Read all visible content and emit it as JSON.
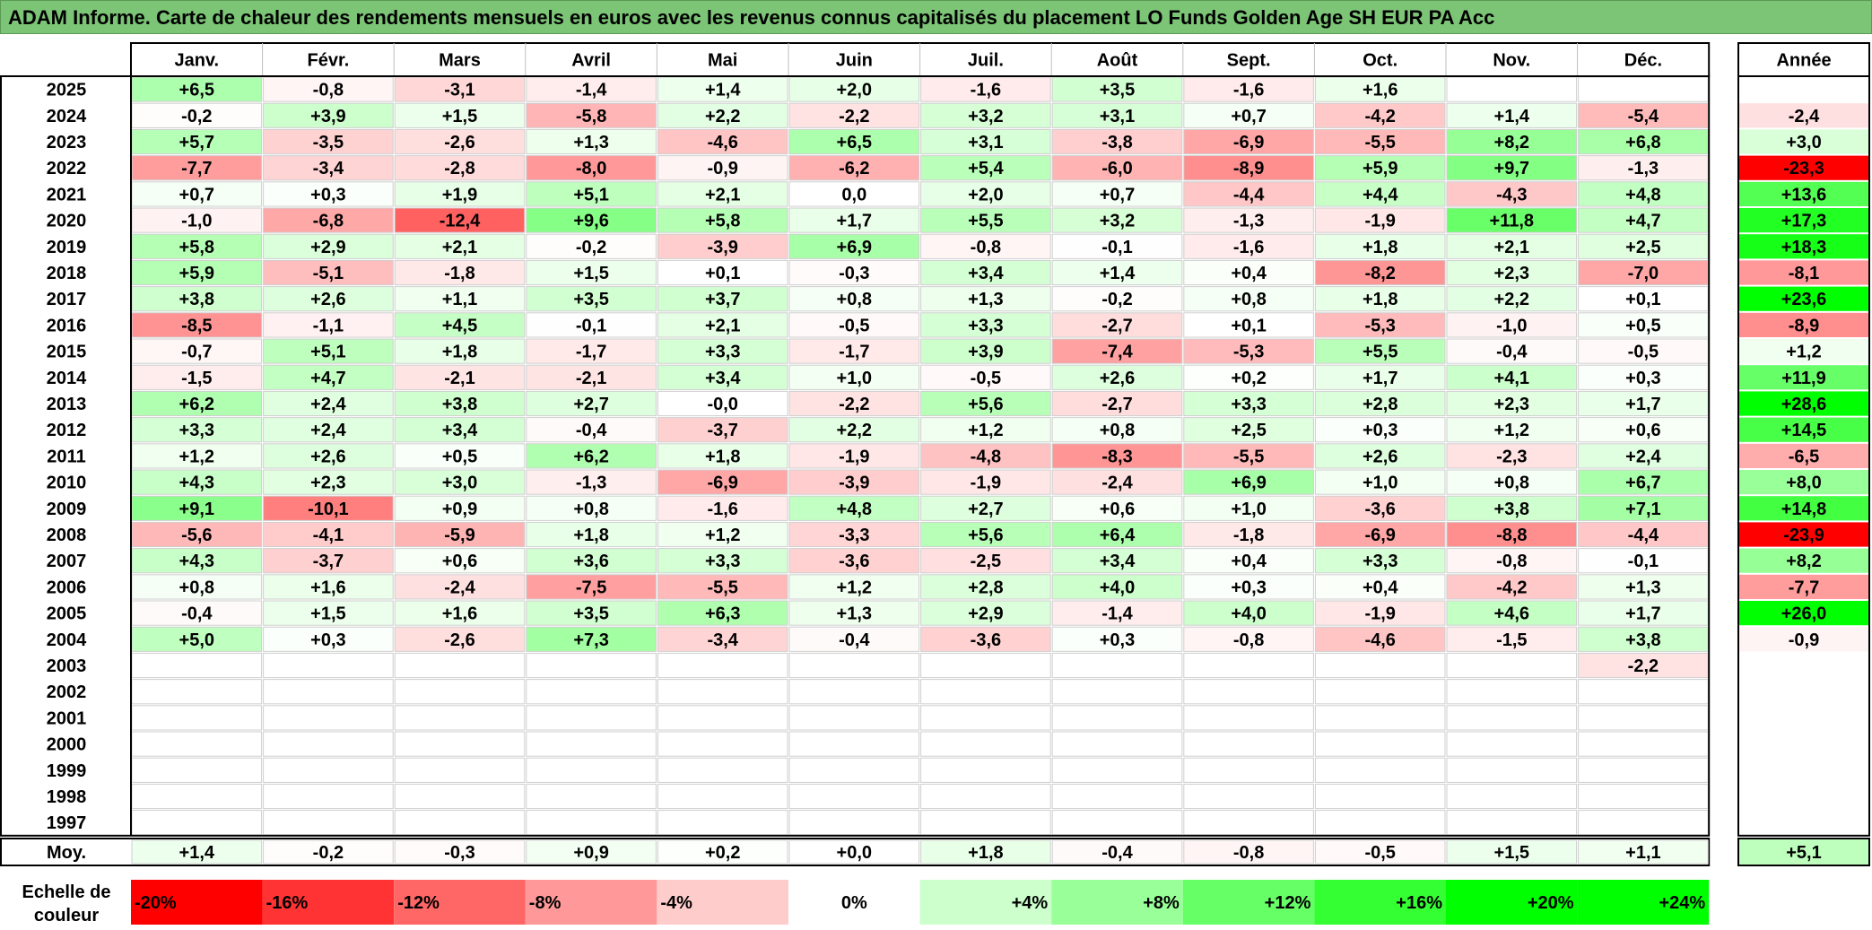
{
  "title": "ADAM Informe. Carte de chaleur des rendements mensuels en euros avec les revenus connus capitalisés du placement LO Funds Golden Age SH EUR PA Acc",
  "chart_data": {
    "type": "heatmap",
    "months": [
      "Janv.",
      "Févr.",
      "Mars",
      "Avril",
      "Mai",
      "Juin",
      "Juil.",
      "Août",
      "Sept.",
      "Oct.",
      "Nov.",
      "Déc."
    ],
    "year_header": "Année",
    "rows": [
      {
        "year": "2025",
        "m": [
          "+6,5",
          "-0,8",
          "-3,1",
          "-1,4",
          "+1,4",
          "+2,0",
          "-1,6",
          "+3,5",
          "-1,6",
          "+1,6",
          "",
          ""
        ],
        "y": ""
      },
      {
        "year": "2024",
        "m": [
          "-0,2",
          "+3,9",
          "+1,5",
          "-5,8",
          "+2,2",
          "-2,2",
          "+3,2",
          "+3,1",
          "+0,7",
          "-4,2",
          "+1,4",
          "-5,4"
        ],
        "y": "-2,4"
      },
      {
        "year": "2023",
        "m": [
          "+5,7",
          "-3,5",
          "-2,6",
          "+1,3",
          "-4,6",
          "+6,5",
          "+3,1",
          "-3,8",
          "-6,9",
          "-5,5",
          "+8,2",
          "+6,8"
        ],
        "y": "+3,0"
      },
      {
        "year": "2022",
        "m": [
          "-7,7",
          "-3,4",
          "-2,8",
          "-8,0",
          "-0,9",
          "-6,2",
          "+5,4",
          "-6,0",
          "-8,9",
          "+5,9",
          "+9,7",
          "-1,3"
        ],
        "y": "-23,3"
      },
      {
        "year": "2021",
        "m": [
          "+0,7",
          "+0,3",
          "+1,9",
          "+5,1",
          "+2,1",
          "0,0",
          "+2,0",
          "+0,7",
          "-4,4",
          "+4,4",
          "-4,3",
          "+4,8"
        ],
        "y": "+13,6"
      },
      {
        "year": "2020",
        "m": [
          "-1,0",
          "-6,8",
          "-12,4",
          "+9,6",
          "+5,8",
          "+1,7",
          "+5,5",
          "+3,2",
          "-1,3",
          "-1,9",
          "+11,8",
          "+4,7"
        ],
        "y": "+17,3"
      },
      {
        "year": "2019",
        "m": [
          "+5,8",
          "+2,9",
          "+2,1",
          "-0,2",
          "-3,9",
          "+6,9",
          "-0,8",
          "-0,1",
          "-1,6",
          "+1,8",
          "+2,1",
          "+2,5"
        ],
        "y": "+18,3"
      },
      {
        "year": "2018",
        "m": [
          "+5,9",
          "-5,1",
          "-1,8",
          "+1,5",
          "+0,1",
          "-0,3",
          "+3,4",
          "+1,4",
          "+0,4",
          "-8,2",
          "+2,3",
          "-7,0"
        ],
        "y": "-8,1"
      },
      {
        "year": "2017",
        "m": [
          "+3,8",
          "+2,6",
          "+1,1",
          "+3,5",
          "+3,7",
          "+0,8",
          "+1,3",
          "-0,2",
          "+0,8",
          "+1,8",
          "+2,2",
          "+0,1"
        ],
        "y": "+23,6"
      },
      {
        "year": "2016",
        "m": [
          "-8,5",
          "-1,1",
          "+4,5",
          "-0,1",
          "+2,1",
          "-0,5",
          "+3,3",
          "-2,7",
          "+0,1",
          "-5,3",
          "-1,0",
          "+0,5"
        ],
        "y": "-8,9"
      },
      {
        "year": "2015",
        "m": [
          "-0,7",
          "+5,1",
          "+1,8",
          "-1,7",
          "+3,3",
          "-1,7",
          "+3,9",
          "-7,4",
          "-5,3",
          "+5,5",
          "-0,4",
          "-0,5"
        ],
        "y": "+1,2"
      },
      {
        "year": "2014",
        "m": [
          "-1,5",
          "+4,7",
          "-2,1",
          "-2,1",
          "+3,4",
          "+1,0",
          "-0,5",
          "+2,6",
          "+0,2",
          "+1,7",
          "+4,1",
          "+0,3"
        ],
        "y": "+11,9"
      },
      {
        "year": "2013",
        "m": [
          "+6,2",
          "+2,4",
          "+3,8",
          "+2,7",
          "-0,0",
          "-2,2",
          "+5,6",
          "-2,7",
          "+3,3",
          "+2,8",
          "+2,3",
          "+1,7"
        ],
        "y": "+28,6"
      },
      {
        "year": "2012",
        "m": [
          "+3,3",
          "+2,4",
          "+3,4",
          "-0,4",
          "-3,7",
          "+2,2",
          "+1,2",
          "+0,8",
          "+2,5",
          "+0,3",
          "+1,2",
          "+0,6"
        ],
        "y": "+14,5"
      },
      {
        "year": "2011",
        "m": [
          "+1,2",
          "+2,6",
          "+0,5",
          "+6,2",
          "+1,8",
          "-1,9",
          "-4,8",
          "-8,3",
          "-5,5",
          "+2,6",
          "-2,3",
          "+2,4"
        ],
        "y": "-6,5"
      },
      {
        "year": "2010",
        "m": [
          "+4,3",
          "+2,3",
          "+3,0",
          "-1,3",
          "-6,9",
          "-3,9",
          "-1,9",
          "-2,4",
          "+6,9",
          "+1,0",
          "+0,8",
          "+6,7"
        ],
        "y": "+8,0"
      },
      {
        "year": "2009",
        "m": [
          "+9,1",
          "-10,1",
          "+0,9",
          "+0,8",
          "-1,6",
          "+4,8",
          "+2,7",
          "+0,6",
          "+1,0",
          "-3,6",
          "+3,8",
          "+7,1"
        ],
        "y": "+14,8"
      },
      {
        "year": "2008",
        "m": [
          "-5,6",
          "-4,1",
          "-5,9",
          "+1,8",
          "+1,2",
          "-3,3",
          "+5,6",
          "+6,4",
          "-1,8",
          "-6,9",
          "-8,8",
          "-4,4"
        ],
        "y": "-23,9"
      },
      {
        "year": "2007",
        "m": [
          "+4,3",
          "-3,7",
          "+0,6",
          "+3,6",
          "+3,3",
          "-3,6",
          "-2,5",
          "+3,4",
          "+0,4",
          "+3,3",
          "-0,8",
          "-0,1"
        ],
        "y": "+8,2"
      },
      {
        "year": "2006",
        "m": [
          "+0,8",
          "+1,6",
          "-2,4",
          "-7,5",
          "-5,5",
          "+1,2",
          "+2,8",
          "+4,0",
          "+0,3",
          "+0,4",
          "-4,2",
          "+1,3"
        ],
        "y": "-7,7"
      },
      {
        "year": "2005",
        "m": [
          "-0,4",
          "+1,5",
          "+1,6",
          "+3,5",
          "+6,3",
          "+1,3",
          "+2,9",
          "-1,4",
          "+4,0",
          "-1,9",
          "+4,6",
          "+1,7"
        ],
        "y": "+26,0"
      },
      {
        "year": "2004",
        "m": [
          "+5,0",
          "+0,3",
          "-2,6",
          "+7,3",
          "-3,4",
          "-0,4",
          "-3,6",
          "+0,3",
          "-0,8",
          "-4,6",
          "-1,5",
          "+3,8"
        ],
        "y": "-0,9"
      },
      {
        "year": "2003",
        "m": [
          "",
          "",
          "",
          "",
          "",
          "",
          "",
          "",
          "",
          "",
          "",
          "-2,2"
        ],
        "y": ""
      },
      {
        "year": "2002",
        "m": [
          "",
          "",
          "",
          "",
          "",
          "",
          "",
          "",
          "",
          "",
          "",
          ""
        ],
        "y": ""
      },
      {
        "year": "2001",
        "m": [
          "",
          "",
          "",
          "",
          "",
          "",
          "",
          "",
          "",
          "",
          "",
          ""
        ],
        "y": ""
      },
      {
        "year": "2000",
        "m": [
          "",
          "",
          "",
          "",
          "",
          "",
          "",
          "",
          "",
          "",
          "",
          ""
        ],
        "y": ""
      },
      {
        "year": "1999",
        "m": [
          "",
          "",
          "",
          "",
          "",
          "",
          "",
          "",
          "",
          "",
          "",
          ""
        ],
        "y": ""
      },
      {
        "year": "1998",
        "m": [
          "",
          "",
          "",
          "",
          "",
          "",
          "",
          "",
          "",
          "",
          "",
          ""
        ],
        "y": ""
      },
      {
        "year": "1997",
        "m": [
          "",
          "",
          "",
          "",
          "",
          "",
          "",
          "",
          "",
          "",
          "",
          ""
        ],
        "y": ""
      }
    ],
    "average": {
      "label": "Moy.",
      "m": [
        "+1,4",
        "-0,2",
        "-0,3",
        "+0,9",
        "+0,2",
        "+0,0",
        "+1,8",
        "-0,4",
        "-0,8",
        "-0,5",
        "+1,5",
        "+1,1"
      ],
      "y": "+5,1"
    },
    "scale": {
      "label_line1": "Echelle de",
      "label_line2": "couleur",
      "stops": [
        {
          "label": "-20%",
          "value": -20,
          "color": "#ff0000"
        },
        {
          "label": "-16%",
          "value": -16,
          "color": "#ff3333"
        },
        {
          "label": "-12%",
          "value": -12,
          "color": "#ff6666"
        },
        {
          "label": "-8%",
          "value": -8,
          "color": "#ff9999"
        },
        {
          "label": "-4%",
          "value": -4,
          "color": "#ffcccc"
        },
        {
          "label": "0%",
          "value": 0,
          "color": "#ffffff"
        },
        {
          "label": "+4%",
          "value": 4,
          "color": "#ccffcc"
        },
        {
          "label": "+8%",
          "value": 8,
          "color": "#99ff99"
        },
        {
          "label": "+12%",
          "value": 12,
          "color": "#66ff66"
        },
        {
          "label": "+16%",
          "value": 16,
          "color": "#33ff33"
        },
        {
          "label": "+20%",
          "value": 20,
          "color": "#00ff00"
        },
        {
          "label": "+24%",
          "value": 24,
          "color": "#00ff00"
        }
      ]
    }
  }
}
